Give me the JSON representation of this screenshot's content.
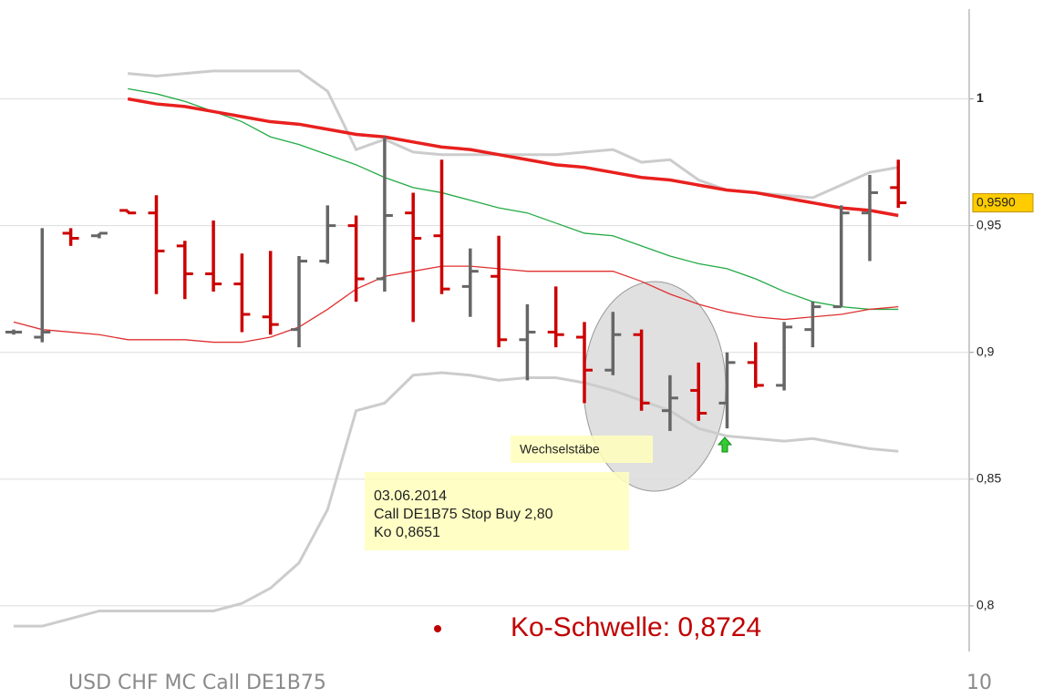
{
  "chart_data": {
    "type": "ohlc",
    "categories": [
      null,
      null,
      null,
      null,
      null,
      null,
      null,
      null,
      null,
      null,
      null,
      null,
      null,
      null,
      null,
      null,
      null,
      null,
      null,
      null,
      null,
      null,
      null,
      null,
      null,
      null,
      null,
      null,
      null,
      null,
      null,
      null
    ],
    "open": [
      0.908,
      0.906,
      0.947,
      0.946,
      0.956,
      0.955,
      0.942,
      0.931,
      0.927,
      0.914,
      0.909,
      0.936,
      0.95,
      0.929,
      0.955,
      0.946,
      0.926,
      0.93,
      0.905,
      0.908,
      0.906,
      0.893,
      0.907,
      0.877,
      0.885,
      0.88,
      0.896,
      0.887,
      0.909,
      0.918,
      0.955,
      0.965
    ],
    "high": [
      0.909,
      0.949,
      0.949,
      0.947,
      0.956,
      0.962,
      0.944,
      0.952,
      0.939,
      0.94,
      0.938,
      0.958,
      0.954,
      0.985,
      0.963,
      0.976,
      0.941,
      0.946,
      0.919,
      0.926,
      0.912,
      0.916,
      0.909,
      0.891,
      0.896,
      0.9,
      0.904,
      0.912,
      0.92,
      0.958,
      0.97,
      0.976
    ],
    "low": [
      0.907,
      0.904,
      0.942,
      0.945,
      0.955,
      0.923,
      0.921,
      0.924,
      0.908,
      0.907,
      0.902,
      0.935,
      0.92,
      0.924,
      0.912,
      0.923,
      0.914,
      0.902,
      0.889,
      0.902,
      0.88,
      0.891,
      0.877,
      0.869,
      0.873,
      0.87,
      0.886,
      0.885,
      0.902,
      0.918,
      0.936,
      0.957
    ],
    "close": [
      0.908,
      0.908,
      0.945,
      0.947,
      0.955,
      0.94,
      0.931,
      0.927,
      0.915,
      0.911,
      0.936,
      0.95,
      0.929,
      0.954,
      0.945,
      0.925,
      0.932,
      0.905,
      0.908,
      0.907,
      0.893,
      0.907,
      0.88,
      0.882,
      0.876,
      0.896,
      0.887,
      0.91,
      0.918,
      0.955,
      0.963,
      0.959
    ],
    "up_color": "#666666",
    "down_color": "#cc0000",
    "lines": [
      {
        "color": "#cccccc",
        "width": 3,
        "values": [
          null,
          null,
          null,
          null,
          1.01,
          1.009,
          1.01,
          1.011,
          1.011,
          1.011,
          1.011,
          1.003,
          0.98,
          0.984,
          0.979,
          0.978,
          0.978,
          0.978,
          0.978,
          0.978,
          0.979,
          0.98,
          0.975,
          0.976,
          0.968,
          0.964,
          0.963,
          0.962,
          0.961,
          0.966,
          0.971,
          0.973
        ]
      },
      {
        "color": "#cccccc",
        "width": 3,
        "values": [
          0.792,
          0.792,
          0.795,
          0.798,
          0.798,
          0.798,
          0.798,
          0.798,
          0.801,
          0.807,
          0.817,
          0.838,
          0.877,
          0.88,
          0.891,
          0.892,
          0.891,
          0.889,
          0.89,
          0.89,
          0.888,
          0.885,
          0.881,
          0.877,
          0.87,
          0.867,
          0.866,
          0.865,
          0.866,
          0.864,
          0.862,
          0.861
        ]
      },
      {
        "color": "#22aa44",
        "width": 1.3,
        "values": [
          null,
          null,
          null,
          null,
          1.004,
          1.002,
          0.999,
          0.995,
          0.991,
          0.985,
          0.982,
          0.978,
          0.974,
          0.969,
          0.965,
          0.963,
          0.96,
          0.957,
          0.955,
          0.951,
          0.947,
          0.946,
          0.942,
          0.938,
          0.935,
          0.933,
          0.929,
          0.924,
          0.92,
          0.918,
          0.917,
          0.917
        ]
      },
      {
        "color": "#e03030",
        "width": 1.3,
        "values": [
          0.912,
          0.909,
          0.908,
          0.907,
          0.905,
          0.905,
          0.905,
          0.904,
          0.904,
          0.906,
          0.91,
          0.917,
          0.925,
          0.93,
          0.932,
          0.934,
          0.934,
          0.933,
          0.932,
          0.932,
          0.932,
          0.932,
          0.928,
          0.923,
          0.919,
          0.916,
          0.914,
          0.913,
          0.914,
          0.915,
          0.917,
          0.918
        ]
      },
      {
        "color": "#e8201e",
        "width": 3.5,
        "values": [
          null,
          null,
          null,
          null,
          1.0,
          0.998,
          0.997,
          0.995,
          0.993,
          0.991,
          0.99,
          0.988,
          0.986,
          0.985,
          0.983,
          0.981,
          0.98,
          0.978,
          0.976,
          0.974,
          0.973,
          0.971,
          0.969,
          0.968,
          0.966,
          0.964,
          0.963,
          0.961,
          0.959,
          0.957,
          0.956,
          0.954
        ]
      }
    ],
    "ylim": [
      0.782,
      1.039
    ],
    "yticks": [
      {
        "value": 0.8,
        "label": "0,8"
      },
      {
        "value": 0.85,
        "label": "0,85"
      },
      {
        "value": 0.9,
        "label": "0,9"
      },
      {
        "value": 0.95,
        "label": "0,95"
      },
      1
    ],
    "grid": true,
    "last_price": {
      "value": 0.959,
      "label": "0,9590"
    },
    "annotations": {
      "pattern": "Wechselstäbe",
      "signal": [
        "03.06.2014",
        "Call DE1B75 Stop Buy 2,80",
        "Ko 0,8651"
      ],
      "bullet": "Ko-Schwelle: 0,8724"
    }
  },
  "footer": {
    "title": "USD CHF  MC  Call DE1B75",
    "page": "10"
  }
}
